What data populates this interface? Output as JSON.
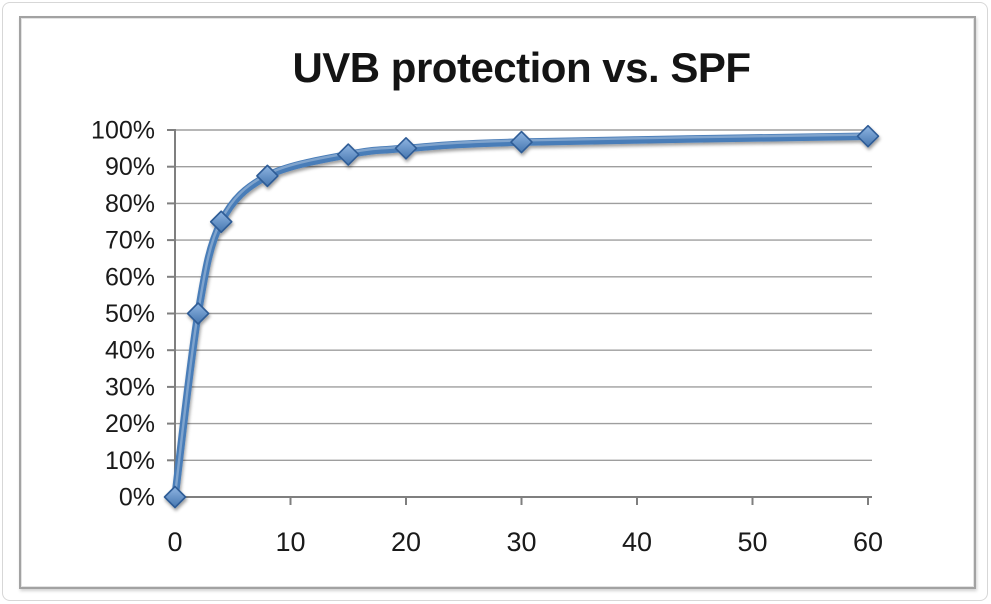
{
  "window": {
    "background": "#ffffff",
    "outer_border_color": "#d7d7d7",
    "frame_border_color": "#a2a2a2"
  },
  "chart": {
    "title": "UVB protection vs. SPF"
  },
  "chart_data": {
    "type": "line",
    "title": "UVB protection vs. SPF",
    "series": [
      {
        "name": "UVB protection",
        "x": [
          0,
          2,
          4,
          8,
          15,
          20,
          30,
          60
        ],
        "y": [
          0,
          50,
          75,
          87.5,
          93.3,
          95,
          96.7,
          98.3
        ]
      }
    ],
    "xlabel": "",
    "ylabel": "",
    "xlim": [
      0,
      60
    ],
    "ylim": [
      0,
      100
    ],
    "x_ticks": [
      0,
      10,
      20,
      30,
      40,
      50,
      60
    ],
    "y_ticks": [
      0,
      10,
      20,
      30,
      40,
      50,
      60,
      70,
      80,
      90,
      100
    ],
    "y_tick_suffix": "%",
    "grid": "horizontal",
    "legend": "none",
    "smoothed": true,
    "marker": "diamond",
    "colors": {
      "line": "#4a7db8",
      "line_highlight": "rgba(255,255,255,0.30)",
      "marker_fill_top": "#8fb5e2",
      "marker_fill_bottom": "#4677b0",
      "marker_border": "#2f5c96",
      "gridline": "#9e9e9e",
      "axis": "#7f7f7f",
      "text": "#1a1a1a"
    }
  }
}
